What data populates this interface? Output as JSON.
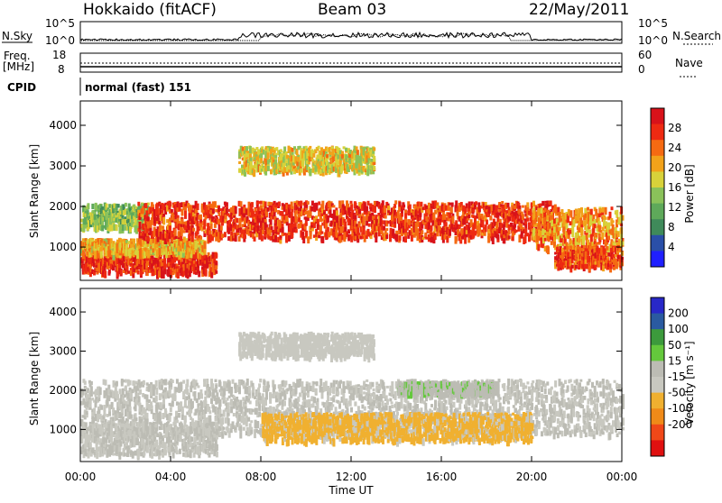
{
  "header": {
    "station": "Hokkaido (fitACF)",
    "beam": "Beam 03",
    "date": "22/May/2011"
  },
  "aux_panels": {
    "nsky_label": "N.Sky",
    "nsearch_label": "N.Search",
    "nsky_ticks": [
      "10^5",
      "10^0"
    ],
    "nsearch_ticks": [
      "10^5",
      "10^0"
    ],
    "freq_label_1": "Freq.",
    "freq_label_2": "[MHz]",
    "freq_ticks": [
      "18",
      "8"
    ],
    "nave_label": "Nave",
    "nave_ticks": [
      "60",
      "0"
    ],
    "cpid_label": "CPID",
    "cpid_value": "normal (fast) 151"
  },
  "colors": {
    "power_scale": [
      "#1f1fff",
      "#2a4fa8",
      "#3f8a5a",
      "#5ea95a",
      "#8ac25a",
      "#d8d23a",
      "#f2a21a",
      "#f56a12",
      "#ee2a12",
      "#d8121a"
    ],
    "velocity_scale": [
      "#e01010",
      "#f04818",
      "#f08a18",
      "#f0b030",
      "#c8c8c0",
      "#bcbcb4",
      "#64c83c",
      "#3c9a3c",
      "#2a5aa0",
      "#2828c8"
    ]
  },
  "chart_data": [
    {
      "type": "heatmap",
      "name": "power",
      "ylabel": "Slant Range [km]",
      "xlabel": "Time UT",
      "x_ticks": [
        "00:00",
        "04:00",
        "08:00",
        "12:00",
        "16:00",
        "20:00",
        "00:00"
      ],
      "y_ticks": [
        "1000",
        "2000",
        "3000",
        "4000"
      ],
      "ylim": [
        180,
        4600
      ],
      "xlim_hours": [
        0,
        24
      ],
      "colorbar_label": "Power [dB]",
      "colorbar_ticks": [
        "4",
        "8",
        "12",
        "16",
        "20",
        "24",
        "28"
      ],
      "colorbar_range": [
        0,
        32
      ],
      "echo_regions": [
        {
          "t_start": 0.0,
          "t_end": 6.0,
          "r_center": 650,
          "r_width": 250,
          "level": 28
        },
        {
          "t_start": 0.0,
          "t_end": 5.5,
          "r_center": 1050,
          "r_width": 180,
          "level": 20
        },
        {
          "t_start": 0.0,
          "t_end": 3.0,
          "r_center": 1800,
          "r_width": 300,
          "level": 14
        },
        {
          "t_start": 2.5,
          "t_end": 21.0,
          "r_center": 1700,
          "r_width": 450,
          "level": 27
        },
        {
          "t_start": 20.0,
          "t_end": 24.0,
          "r_center": 1500,
          "r_width": 500,
          "level": 22
        },
        {
          "t_start": 7.0,
          "t_end": 13.0,
          "r_center": 3200,
          "r_width": 300,
          "level": 18
        },
        {
          "t_start": 21.0,
          "t_end": 24.0,
          "r_center": 800,
          "r_width": 250,
          "level": 26
        }
      ]
    },
    {
      "type": "heatmap",
      "name": "velocity",
      "ylabel": "Slant Range [km]",
      "xlabel": "Time UT",
      "x_ticks": [
        "00:00",
        "04:00",
        "08:00",
        "12:00",
        "16:00",
        "20:00",
        "00:00"
      ],
      "y_ticks": [
        "1000",
        "2000",
        "3000",
        "4000"
      ],
      "ylim": [
        180,
        4600
      ],
      "xlim_hours": [
        0,
        24
      ],
      "colorbar_label": "Velocity [m s⁻¹]",
      "colorbar_ticks": [
        "200",
        "100",
        "50",
        "15",
        "-15",
        "-50",
        "-100",
        "-200"
      ],
      "colorbar_range": [
        -250,
        250
      ],
      "echo_regions": [
        {
          "t_start": 0.0,
          "t_end": 24.0,
          "r_center": 1600,
          "r_width": 700,
          "level": 0
        },
        {
          "t_start": 0.0,
          "t_end": 6.0,
          "r_center": 800,
          "r_width": 400,
          "level": 0
        },
        {
          "t_start": 14.0,
          "t_end": 18.5,
          "r_center": 2100,
          "r_width": 150,
          "level": 40
        },
        {
          "t_start": 7.0,
          "t_end": 13.0,
          "r_center": 3200,
          "r_width": 300,
          "level": -30
        },
        {
          "t_start": 8.0,
          "t_end": 20.0,
          "r_center": 1100,
          "r_width": 350,
          "level": -60
        }
      ]
    }
  ]
}
